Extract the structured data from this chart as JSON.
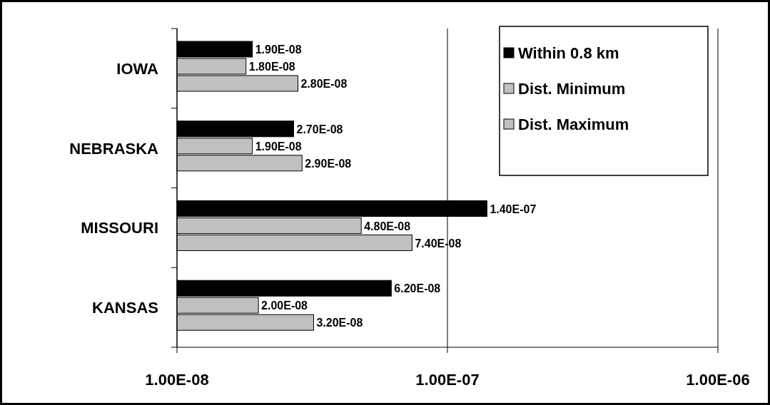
{
  "chart_data": {
    "type": "bar",
    "orientation": "horizontal",
    "categories": [
      "IOWA",
      "NEBRASKA",
      "MISSOURI",
      "KANSAS"
    ],
    "series": [
      {
        "name": "Within 0.8 km",
        "color": "#000000",
        "values": [
          1.9e-08,
          2.7e-08,
          1.4e-07,
          6.2e-08
        ],
        "value_labels": [
          "1.90E-08",
          "2.70E-08",
          "1.40E-07",
          "6.20E-08"
        ]
      },
      {
        "name": "Dist. Minimum",
        "color": "#c0c0c0",
        "values": [
          1.8e-08,
          1.9e-08,
          4.8e-08,
          2e-08
        ],
        "value_labels": [
          "1.80E-08",
          "1.90E-08",
          "4.80E-08",
          "2.00E-08"
        ]
      },
      {
        "name": "Dist. Maximum",
        "color": "#c0c0c0",
        "values": [
          2.8e-08,
          2.9e-08,
          7.4e-08,
          3.2e-08
        ],
        "value_labels": [
          "2.80E-08",
          "2.90E-08",
          "7.40E-08",
          "3.20E-08"
        ]
      }
    ],
    "log": "x",
    "xlim": [
      1e-08,
      1e-06
    ],
    "xticks": [
      {
        "value": 1e-08,
        "label": "1.00E-08"
      },
      {
        "value": 1e-07,
        "label": "1.00E-07"
      },
      {
        "value": 1e-06,
        "label": "1.00E-06"
      }
    ],
    "grid": "x",
    "legend": "top right"
  }
}
